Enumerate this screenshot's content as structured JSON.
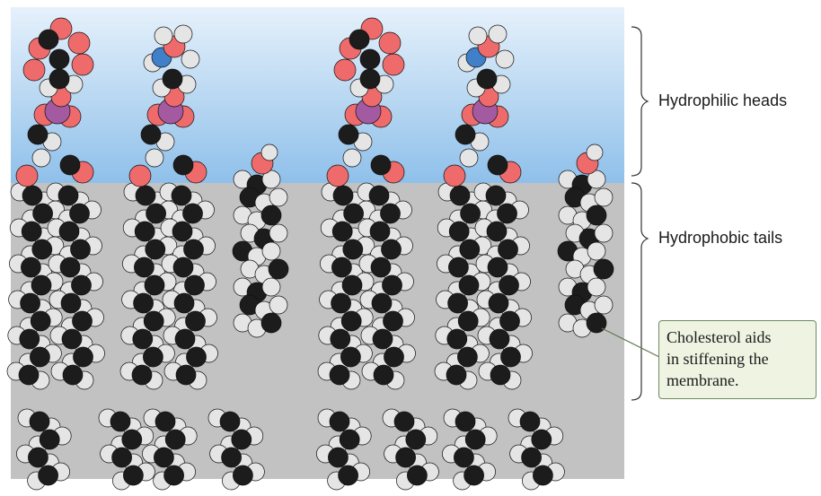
{
  "labels": {
    "heads": "Hydrophilic heads",
    "tails": "Hydrophobic tails",
    "callout": [
      "Cholesterol aids",
      "in stiffening the",
      "membrane."
    ]
  },
  "colors": {
    "water_top": "#e6f1fb",
    "water_bottom": "#8fc0ea",
    "interior": "#c2c2c2",
    "carbon": "#1c1c1c",
    "hydrogen": "#e5e5e5",
    "oxygen": "#ef6b6b",
    "phosphorus": "#a45aa0",
    "nitrogen": "#3f80c8",
    "callout_bg": "#eef3e2",
    "callout_border": "#6f8a60"
  },
  "molecules": [
    {
      "kind": "phospholipid",
      "head": "choline"
    },
    {
      "kind": "phospholipid",
      "head": "ethanolamine"
    },
    {
      "kind": "cholesterol"
    },
    {
      "kind": "phospholipid",
      "head": "choline"
    },
    {
      "kind": "phospholipid",
      "head": "ethanolamine"
    },
    {
      "kind": "cholesterol"
    }
  ]
}
